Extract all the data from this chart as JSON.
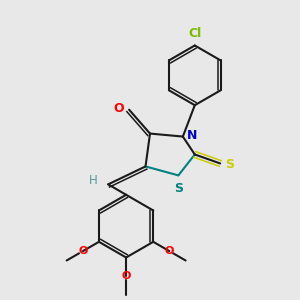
{
  "background_color": "#e8e8e8",
  "bond_color": "#1a1a1a",
  "atom_colors": {
    "O": "#ff0000",
    "N": "#0000cc",
    "S_thioxo": "#cccc00",
    "S_ring": "#008080",
    "Cl": "#7cba00",
    "H": "#559999",
    "C": "#1a1a1a"
  },
  "figsize": [
    3.0,
    3.0
  ],
  "dpi": 100
}
